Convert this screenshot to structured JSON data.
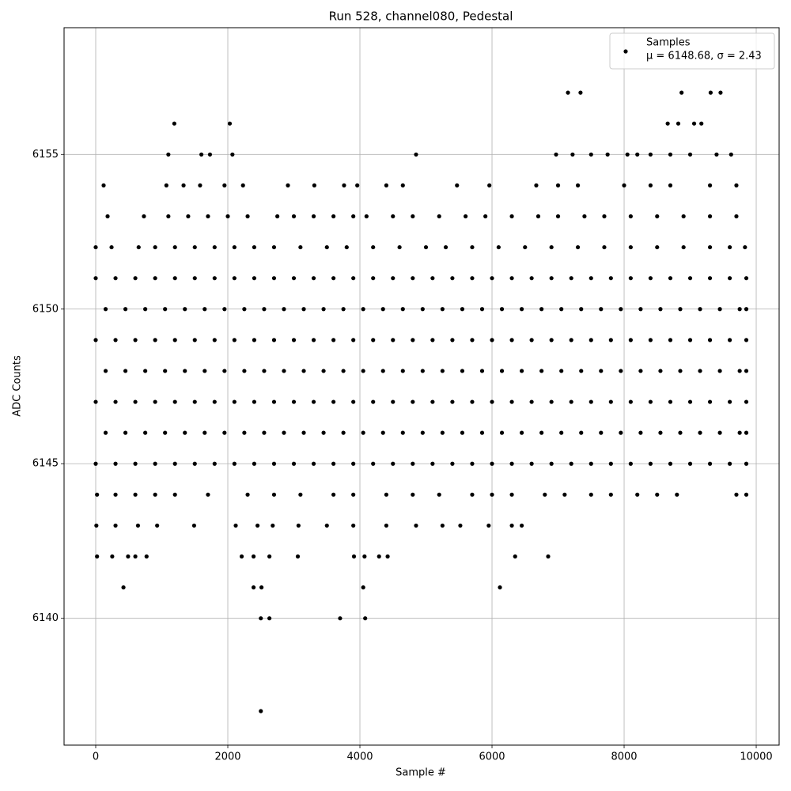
{
  "chart_data": {
    "type": "scatter",
    "title": "Run 528, channel080, Pedestal",
    "xlabel": "Sample #",
    "ylabel": "ADC Counts",
    "xlim": [
      -479,
      10347
    ],
    "ylim": [
      6135.9,
      6159.1
    ],
    "xticks": [
      0,
      2000,
      4000,
      6000,
      8000,
      10000
    ],
    "yticks": [
      6140,
      6145,
      6150,
      6155
    ],
    "grid": true,
    "legend": "upper right",
    "legend_stats": "μ = 6148.68, σ = 2.43",
    "series": [
      {
        "name": "Samples",
        "color": "#000000",
        "x": [
          2500,
          2500,
          2630,
          3700,
          4080,
          420,
          2390,
          2510,
          4050,
          6120,
          20,
          250,
          490,
          600,
          770,
          2210,
          2390,
          2630,
          3060,
          3910,
          4070,
          4290,
          4420,
          6350,
          6850,
          10,
          300,
          640,
          930,
          1490,
          2120,
          2450,
          2680,
          3070,
          3500,
          3900,
          4400,
          4850,
          5250,
          5520,
          5950,
          6300,
          6450,
          20,
          300,
          600,
          900,
          1200,
          1700,
          2300,
          2700,
          3100,
          3600,
          3900,
          4400,
          4800,
          5200,
          5700,
          6000,
          6300,
          6800,
          7100,
          7500,
          7800,
          8200,
          8500,
          8800,
          9700,
          9850,
          0,
          300,
          600,
          900,
          1200,
          1500,
          1800,
          2100,
          2400,
          2700,
          3000,
          3300,
          3600,
          3900,
          4200,
          4500,
          4800,
          5100,
          5400,
          5700,
          6000,
          6300,
          6600,
          6900,
          7200,
          7500,
          7800,
          8100,
          8400,
          8700,
          9000,
          9300,
          9600,
          9850,
          150,
          450,
          750,
          1050,
          1350,
          1650,
          1950,
          2250,
          2550,
          2850,
          3150,
          3450,
          3750,
          4050,
          4350,
          4650,
          4950,
          5250,
          5550,
          5850,
          6150,
          6450,
          6750,
          7050,
          7350,
          7650,
          7950,
          8250,
          8550,
          8850,
          9150,
          9450,
          9750,
          9850,
          0,
          300,
          600,
          900,
          1200,
          1500,
          1800,
          2100,
          2400,
          2700,
          3000,
          3300,
          3600,
          3900,
          4200,
          4500,
          4800,
          5100,
          5400,
          5700,
          6000,
          6300,
          6600,
          6900,
          7200,
          7500,
          7800,
          8100,
          8400,
          8700,
          9000,
          9300,
          9600,
          9850,
          150,
          450,
          750,
          1050,
          1350,
          1650,
          1950,
          2250,
          2550,
          2850,
          3150,
          3450,
          3750,
          4050,
          4350,
          4650,
          4950,
          5250,
          5550,
          5850,
          6150,
          6450,
          6750,
          7050,
          7350,
          7650,
          7950,
          8250,
          8550,
          8850,
          9150,
          9450,
          9750,
          9850,
          0,
          300,
          600,
          900,
          1200,
          1500,
          1800,
          2100,
          2400,
          2700,
          3000,
          3300,
          3600,
          3900,
          4200,
          4500,
          4800,
          5100,
          5400,
          5700,
          6000,
          6300,
          6600,
          6900,
          7200,
          7500,
          7800,
          8100,
          8400,
          8700,
          9000,
          9300,
          9600,
          9850,
          150,
          450,
          750,
          1050,
          1350,
          1650,
          1950,
          2250,
          2550,
          2850,
          3150,
          3450,
          3750,
          4050,
          4350,
          4650,
          4950,
          5250,
          5550,
          5850,
          6150,
          6450,
          6750,
          7050,
          7350,
          7650,
          7950,
          8250,
          8550,
          8850,
          9150,
          9450,
          9750,
          9850,
          0,
          300,
          600,
          900,
          1200,
          1500,
          1800,
          2100,
          2400,
          2700,
          3000,
          3300,
          3600,
          3900,
          4200,
          4500,
          4800,
          5100,
          5400,
          5700,
          6000,
          6300,
          6600,
          6900,
          7200,
          7500,
          7800,
          8100,
          8400,
          8700,
          9000,
          9300,
          9600,
          9850,
          0,
          240,
          650,
          900,
          1200,
          1500,
          1800,
          2100,
          2400,
          2700,
          3100,
          3500,
          3800,
          4200,
          4600,
          5000,
          5300,
          5700,
          6100,
          6500,
          6900,
          7300,
          7700,
          8100,
          8500,
          8900,
          9300,
          9600,
          9830,
          180,
          730,
          1100,
          1400,
          1700,
          2000,
          2300,
          2750,
          3000,
          3300,
          3600,
          3900,
          4100,
          4500,
          4800,
          5200,
          5600,
          5900,
          6300,
          6700,
          7000,
          7400,
          7700,
          8100,
          8500,
          8900,
          9300,
          9700,
          120,
          1070,
          1330,
          1580,
          1950,
          2230,
          2910,
          3310,
          3760,
          3960,
          4400,
          4650,
          5470,
          5960,
          6670,
          7000,
          7300,
          8000,
          8400,
          8700,
          9300,
          9700,
          1100,
          1600,
          1730,
          2070,
          4850,
          6970,
          7220,
          7500,
          7750,
          8050,
          8200,
          8400,
          8700,
          9000,
          9400,
          9620,
          1190,
          2030,
          8660,
          8820,
          9060,
          9170,
          7150,
          7340,
          8870,
          9310,
          9460
        ],
        "values": [
          6137,
          6140,
          6140,
          6140,
          6140,
          6141,
          6141,
          6141,
          6141,
          6141,
          6142,
          6142,
          6142,
          6142,
          6142,
          6142,
          6142,
          6142,
          6142,
          6142,
          6142,
          6142,
          6142,
          6142,
          6142,
          6143,
          6143,
          6143,
          6143,
          6143,
          6143,
          6143,
          6143,
          6143,
          6143,
          6143,
          6143,
          6143,
          6143,
          6143,
          6143,
          6143,
          6143,
          6144,
          6144,
          6144,
          6144,
          6144,
          6144,
          6144,
          6144,
          6144,
          6144,
          6144,
          6144,
          6144,
          6144,
          6144,
          6144,
          6144,
          6144,
          6144,
          6144,
          6144,
          6144,
          6144,
          6144,
          6144,
          6144,
          6145,
          6145,
          6145,
          6145,
          6145,
          6145,
          6145,
          6145,
          6145,
          6145,
          6145,
          6145,
          6145,
          6145,
          6145,
          6145,
          6145,
          6145,
          6145,
          6145,
          6145,
          6145,
          6145,
          6145,
          6145,
          6145,
          6145,
          6145,
          6145,
          6145,
          6145,
          6145,
          6145,
          6145,
          6146,
          6146,
          6146,
          6146,
          6146,
          6146,
          6146,
          6146,
          6146,
          6146,
          6146,
          6146,
          6146,
          6146,
          6146,
          6146,
          6146,
          6146,
          6146,
          6146,
          6146,
          6146,
          6146,
          6146,
          6146,
          6146,
          6146,
          6146,
          6146,
          6146,
          6146,
          6146,
          6146,
          6146,
          6147,
          6147,
          6147,
          6147,
          6147,
          6147,
          6147,
          6147,
          6147,
          6147,
          6147,
          6147,
          6147,
          6147,
          6147,
          6147,
          6147,
          6147,
          6147,
          6147,
          6147,
          6147,
          6147,
          6147,
          6147,
          6147,
          6147,
          6147,
          6147,
          6147,
          6147,
          6147,
          6147,
          6147,
          6148,
          6148,
          6148,
          6148,
          6148,
          6148,
          6148,
          6148,
          6148,
          6148,
          6148,
          6148,
          6148,
          6148,
          6148,
          6148,
          6148,
          6148,
          6148,
          6148,
          6148,
          6148,
          6148,
          6148,
          6148,
          6148,
          6148,
          6148,
          6148,
          6148,
          6148,
          6148,
          6148,
          6148,
          6149,
          6149,
          6149,
          6149,
          6149,
          6149,
          6149,
          6149,
          6149,
          6149,
          6149,
          6149,
          6149,
          6149,
          6149,
          6149,
          6149,
          6149,
          6149,
          6149,
          6149,
          6149,
          6149,
          6149,
          6149,
          6149,
          6149,
          6149,
          6149,
          6149,
          6149,
          6149,
          6149,
          6149,
          6150,
          6150,
          6150,
          6150,
          6150,
          6150,
          6150,
          6150,
          6150,
          6150,
          6150,
          6150,
          6150,
          6150,
          6150,
          6150,
          6150,
          6150,
          6150,
          6150,
          6150,
          6150,
          6150,
          6150,
          6150,
          6150,
          6150,
          6150,
          6150,
          6150,
          6150,
          6150,
          6150,
          6150,
          6151,
          6151,
          6151,
          6151,
          6151,
          6151,
          6151,
          6151,
          6151,
          6151,
          6151,
          6151,
          6151,
          6151,
          6151,
          6151,
          6151,
          6151,
          6151,
          6151,
          6151,
          6151,
          6151,
          6151,
          6151,
          6151,
          6151,
          6151,
          6151,
          6151,
          6151,
          6151,
          6151,
          6151,
          6152,
          6152,
          6152,
          6152,
          6152,
          6152,
          6152,
          6152,
          6152,
          6152,
          6152,
          6152,
          6152,
          6152,
          6152,
          6152,
          6152,
          6152,
          6152,
          6152,
          6152,
          6152,
          6152,
          6152,
          6152,
          6152,
          6152,
          6152,
          6152,
          6153,
          6153,
          6153,
          6153,
          6153,
          6153,
          6153,
          6153,
          6153,
          6153,
          6153,
          6153,
          6153,
          6153,
          6153,
          6153,
          6153,
          6153,
          6153,
          6153,
          6153,
          6153,
          6153,
          6153,
          6153,
          6153,
          6153,
          6153,
          6154,
          6154,
          6154,
          6154,
          6154,
          6154,
          6154,
          6154,
          6154,
          6154,
          6154,
          6154,
          6154,
          6154,
          6154,
          6154,
          6154,
          6154,
          6154,
          6154,
          6154,
          6154,
          6155,
          6155,
          6155,
          6155,
          6155,
          6155,
          6155,
          6155,
          6155,
          6155,
          6155,
          6155,
          6155,
          6155,
          6155,
          6155,
          6156,
          6156,
          6156,
          6156,
          6156,
          6156,
          6157,
          6157,
          6157,
          6157,
          6157
        ]
      }
    ]
  }
}
